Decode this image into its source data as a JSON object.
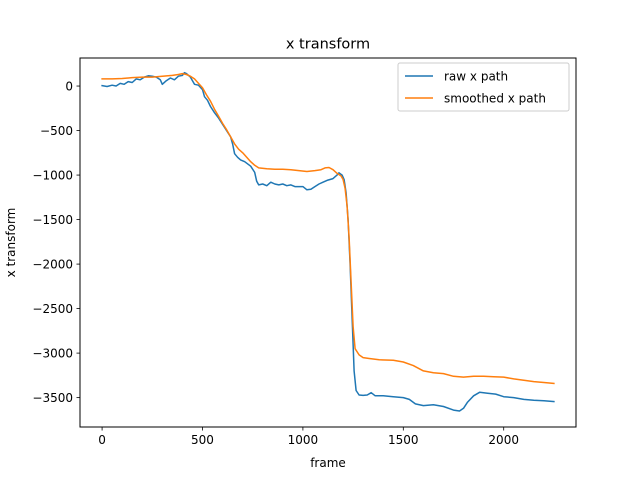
{
  "chart_data": {
    "type": "line",
    "title": "x transform",
    "xlabel": "frame",
    "ylabel": "x transform",
    "xlim": [
      -110,
      2360
    ],
    "ylim": [
      -3830,
      315
    ],
    "xticks": [
      0,
      500,
      1000,
      1500,
      2000
    ],
    "yticks": [
      0,
      -500,
      -1000,
      -1500,
      -2000,
      -2500,
      -3000,
      -3500
    ],
    "xtick_labels": [
      "0",
      "500",
      "1000",
      "1500",
      "2000"
    ],
    "ytick_labels": [
      "0",
      "−500",
      "−1000",
      "−1500",
      "−2000",
      "−2500",
      "−3000",
      "−3500"
    ],
    "legend_position": "top-right",
    "grid": false,
    "series": [
      {
        "name": "raw x path",
        "color": "#1f77b4",
        "points": [
          [
            0,
            5
          ],
          [
            25,
            -5
          ],
          [
            50,
            10
          ],
          [
            70,
            0
          ],
          [
            90,
            30
          ],
          [
            110,
            20
          ],
          [
            130,
            50
          ],
          [
            150,
            40
          ],
          [
            170,
            80
          ],
          [
            190,
            70
          ],
          [
            210,
            100
          ],
          [
            230,
            115
          ],
          [
            250,
            110
          ],
          [
            270,
            100
          ],
          [
            290,
            70
          ],
          [
            300,
            20
          ],
          [
            320,
            60
          ],
          [
            340,
            90
          ],
          [
            360,
            70
          ],
          [
            380,
            110
          ],
          [
            400,
            120
          ],
          [
            410,
            150
          ],
          [
            420,
            140
          ],
          [
            440,
            100
          ],
          [
            460,
            20
          ],
          [
            480,
            10
          ],
          [
            500,
            -40
          ],
          [
            510,
            -120
          ],
          [
            525,
            -160
          ],
          [
            540,
            -230
          ],
          [
            560,
            -300
          ],
          [
            580,
            -360
          ],
          [
            600,
            -430
          ],
          [
            620,
            -500
          ],
          [
            640,
            -570
          ],
          [
            650,
            -650
          ],
          [
            660,
            -760
          ],
          [
            675,
            -800
          ],
          [
            690,
            -830
          ],
          [
            710,
            -850
          ],
          [
            740,
            -900
          ],
          [
            760,
            -970
          ],
          [
            770,
            -1070
          ],
          [
            780,
            -1110
          ],
          [
            800,
            -1100
          ],
          [
            820,
            -1120
          ],
          [
            840,
            -1080
          ],
          [
            860,
            -1100
          ],
          [
            880,
            -1110
          ],
          [
            900,
            -1100
          ],
          [
            920,
            -1120
          ],
          [
            940,
            -1110
          ],
          [
            960,
            -1130
          ],
          [
            980,
            -1130
          ],
          [
            1000,
            -1130
          ],
          [
            1020,
            -1165
          ],
          [
            1040,
            -1160
          ],
          [
            1060,
            -1130
          ],
          [
            1080,
            -1100
          ],
          [
            1100,
            -1080
          ],
          [
            1120,
            -1060
          ],
          [
            1150,
            -1040
          ],
          [
            1170,
            -1000
          ],
          [
            1180,
            -975
          ],
          [
            1195,
            -1000
          ],
          [
            1205,
            -1050
          ],
          [
            1215,
            -1200
          ],
          [
            1225,
            -1500
          ],
          [
            1235,
            -2000
          ],
          [
            1245,
            -2600
          ],
          [
            1255,
            -3200
          ],
          [
            1265,
            -3420
          ],
          [
            1280,
            -3470
          ],
          [
            1300,
            -3475
          ],
          [
            1320,
            -3470
          ],
          [
            1340,
            -3445
          ],
          [
            1360,
            -3480
          ],
          [
            1400,
            -3480
          ],
          [
            1450,
            -3490
          ],
          [
            1500,
            -3500
          ],
          [
            1530,
            -3520
          ],
          [
            1560,
            -3570
          ],
          [
            1600,
            -3590
          ],
          [
            1650,
            -3580
          ],
          [
            1700,
            -3600
          ],
          [
            1750,
            -3640
          ],
          [
            1780,
            -3650
          ],
          [
            1800,
            -3620
          ],
          [
            1820,
            -3550
          ],
          [
            1850,
            -3480
          ],
          [
            1880,
            -3440
          ],
          [
            1920,
            -3450
          ],
          [
            1960,
            -3460
          ],
          [
            2000,
            -3490
          ],
          [
            2050,
            -3500
          ],
          [
            2100,
            -3520
          ],
          [
            2150,
            -3530
          ],
          [
            2200,
            -3535
          ],
          [
            2250,
            -3545
          ]
        ]
      },
      {
        "name": "smoothed x path",
        "color": "#ff7f0e",
        "points": [
          [
            0,
            80
          ],
          [
            50,
            80
          ],
          [
            100,
            85
          ],
          [
            150,
            95
          ],
          [
            200,
            100
          ],
          [
            250,
            100
          ],
          [
            300,
            110
          ],
          [
            350,
            120
          ],
          [
            380,
            130
          ],
          [
            400,
            140
          ],
          [
            420,
            130
          ],
          [
            440,
            110
          ],
          [
            460,
            80
          ],
          [
            480,
            30
          ],
          [
            500,
            -20
          ],
          [
            520,
            -100
          ],
          [
            540,
            -170
          ],
          [
            560,
            -260
          ],
          [
            580,
            -340
          ],
          [
            600,
            -420
          ],
          [
            620,
            -490
          ],
          [
            640,
            -570
          ],
          [
            660,
            -650
          ],
          [
            680,
            -710
          ],
          [
            700,
            -750
          ],
          [
            720,
            -800
          ],
          [
            740,
            -850
          ],
          [
            760,
            -890
          ],
          [
            780,
            -920
          ],
          [
            820,
            -930
          ],
          [
            860,
            -935
          ],
          [
            900,
            -935
          ],
          [
            940,
            -940
          ],
          [
            980,
            -950
          ],
          [
            1020,
            -960
          ],
          [
            1060,
            -950
          ],
          [
            1090,
            -940
          ],
          [
            1110,
            -920
          ],
          [
            1130,
            -915
          ],
          [
            1150,
            -940
          ],
          [
            1170,
            -980
          ],
          [
            1190,
            -1010
          ],
          [
            1200,
            -1050
          ],
          [
            1210,
            -1150
          ],
          [
            1220,
            -1350
          ],
          [
            1230,
            -1700
          ],
          [
            1240,
            -2200
          ],
          [
            1250,
            -2700
          ],
          [
            1260,
            -2950
          ],
          [
            1280,
            -3020
          ],
          [
            1300,
            -3050
          ],
          [
            1330,
            -3060
          ],
          [
            1380,
            -3075
          ],
          [
            1450,
            -3080
          ],
          [
            1500,
            -3100
          ],
          [
            1550,
            -3140
          ],
          [
            1600,
            -3200
          ],
          [
            1650,
            -3220
          ],
          [
            1700,
            -3230
          ],
          [
            1750,
            -3260
          ],
          [
            1800,
            -3270
          ],
          [
            1850,
            -3260
          ],
          [
            1900,
            -3260
          ],
          [
            1950,
            -3265
          ],
          [
            2000,
            -3270
          ],
          [
            2050,
            -3290
          ],
          [
            2100,
            -3305
          ],
          [
            2150,
            -3320
          ],
          [
            2200,
            -3330
          ],
          [
            2250,
            -3340
          ]
        ]
      }
    ]
  }
}
